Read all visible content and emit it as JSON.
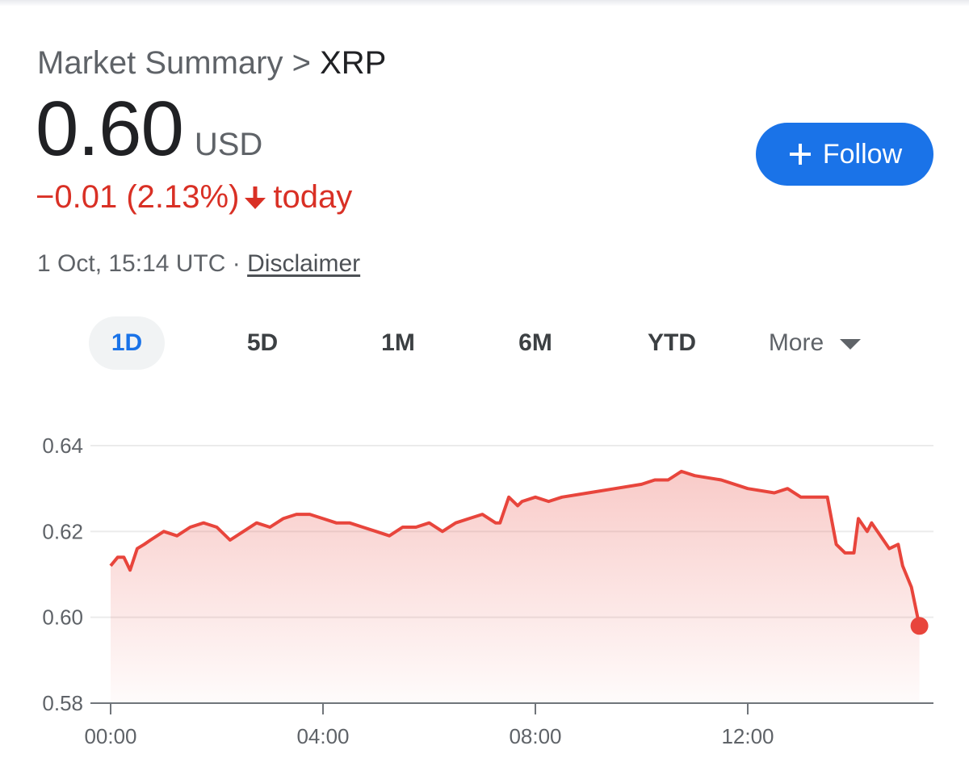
{
  "breadcrumb": {
    "prefix": "Market Summary",
    "separator": ">",
    "symbol": "XRP"
  },
  "quote": {
    "price": "0.60",
    "currency": "USD",
    "change_text": "−0.01 (2.13%)",
    "change_suffix": "today",
    "direction": "down",
    "timestamp": "1 Oct, 15:14 UTC",
    "separator": "·",
    "disclaimer_label": "Disclaimer"
  },
  "follow": {
    "label": "Follow",
    "icon": "plus-icon"
  },
  "ranges": {
    "items": [
      "1D",
      "5D",
      "1M",
      "6M",
      "YTD"
    ],
    "active": "1D",
    "more_label": "More",
    "more_icon": "caret-down-icon"
  },
  "colors": {
    "accent": "#1a73e8",
    "negative": "#d93025",
    "line": "#e8453c",
    "text_secondary": "#5f6368",
    "active_tab_bg": "#f1f3f4"
  },
  "chart_data": {
    "type": "area",
    "title": "",
    "xlabel": "",
    "ylabel": "",
    "xlim": [
      "00:00",
      "15:14"
    ],
    "ylim": [
      0.58,
      0.64
    ],
    "y_ticks": [
      "0.64",
      "0.62",
      "0.60",
      "0.58"
    ],
    "x_ticks": [
      "00:00",
      "04:00",
      "08:00",
      "12:00"
    ],
    "grid": true,
    "series": [
      {
        "x": [
          "00:00",
          "00:08",
          "00:15",
          "00:22",
          "00:30",
          "00:38",
          "00:45",
          "01:00",
          "01:15",
          "01:30",
          "01:45",
          "02:00",
          "02:15",
          "02:30",
          "02:45",
          "03:00",
          "03:15",
          "03:30",
          "03:45",
          "04:00",
          "04:15",
          "04:30",
          "04:45",
          "05:00",
          "05:15",
          "05:30",
          "05:45",
          "06:00",
          "06:15",
          "06:30",
          "06:45",
          "07:00",
          "07:15",
          "07:20",
          "07:30",
          "07:40",
          "07:45",
          "08:00",
          "08:15",
          "08:30",
          "09:00",
          "09:30",
          "10:00",
          "10:15",
          "10:30",
          "10:45",
          "11:00",
          "11:30",
          "12:00",
          "12:30",
          "12:45",
          "13:00",
          "13:15",
          "13:30",
          "13:40",
          "13:50",
          "14:00",
          "14:05",
          "14:15",
          "14:20",
          "14:30",
          "14:40",
          "14:50",
          "14:55",
          "15:05",
          "15:14"
        ],
        "values": [
          0.612,
          0.614,
          0.614,
          0.611,
          0.616,
          0.617,
          0.618,
          0.62,
          0.619,
          0.621,
          0.622,
          0.621,
          0.618,
          0.62,
          0.622,
          0.621,
          0.623,
          0.624,
          0.624,
          0.623,
          0.622,
          0.622,
          0.621,
          0.62,
          0.619,
          0.621,
          0.621,
          0.622,
          0.62,
          0.622,
          0.623,
          0.624,
          0.622,
          0.622,
          0.628,
          0.626,
          0.627,
          0.628,
          0.627,
          0.628,
          0.629,
          0.63,
          0.631,
          0.632,
          0.632,
          0.634,
          0.633,
          0.632,
          0.63,
          0.629,
          0.63,
          0.628,
          0.628,
          0.628,
          0.617,
          0.615,
          0.615,
          0.623,
          0.62,
          0.622,
          0.619,
          0.616,
          0.617,
          0.612,
          0.607,
          0.598
        ]
      }
    ]
  }
}
